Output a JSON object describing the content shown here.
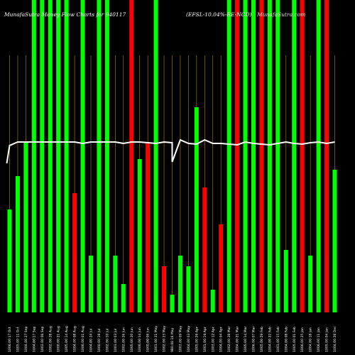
{
  "title_left": "MunafaSutra Money Flow Charts for 940117",
  "title_right": "(EFSL-10.04%-RE-NCD)",
  "watermark": "MunafaSutra.com",
  "colors": {
    "background": "#000000",
    "up": "#00ff00",
    "down": "#ff0000",
    "line": "#ffffff",
    "grid": "#b8860b"
  },
  "chart_data": {
    "type": "bar",
    "title": "MunafaSutra Money Flow Charts for 940117",
    "subtitle": "(EFSL-10.04%-RE-NCD)",
    "ylim": [
      0,
      440
    ],
    "grid": "vertical",
    "categories": [
      "1006.00 17 Oct",
      "1005.00 11 Oct",
      "1004.00 27 Sep",
      "1004.00 17 Sep",
      "1003.00 06 Sep",
      "1002.00 28 Aug",
      "1000.00 21 Aug",
      "1005.00 14 Aug",
      "1004.00 08 Aug",
      "1006.00 01 Aug",
      "1004.00 24 Jul",
      "1000.00 18 Jul",
      "1002.00 10 Jul",
      "1003.00 03 Jul",
      "1002.00 26 Jun",
      "1005.00 20 Jun",
      "1006.00 14 Jun",
      "1000.00 06 Jun",
      "1001.00 31 May",
      "1002.00 23 May",
      "980.00 16 May",
      "1003.00 09 May",
      "1004.00 03 May",
      "1005.00 26 Apr",
      "1001.00 19 Apr",
      "1003.00 12 Apr",
      "1004.00 04 Apr",
      "1002.00 28 Mar",
      "1004.00 21 Mar",
      "1005.00 14 Mar",
      "1006.00 07 Mar",
      "1005.00 29 Feb",
      "1004.00 22 Feb",
      "1003.00 15 Feb",
      "1004.00 08 Feb",
      "1005.00 01 Feb",
      "1006.00 25 Jan",
      "1004.00 18 Jan",
      "1006.00 11 Jan",
      "1005.00 04 Jan",
      "1004.00 28 Dec"
    ],
    "series": [
      {
        "values": [
          145,
          192,
          240,
          440,
          440,
          440,
          440,
          440,
          168,
          440,
          80,
          440,
          440,
          80,
          40,
          440,
          216,
          240,
          440,
          65,
          25,
          80,
          65,
          289,
          176,
          32,
          124,
          440,
          440,
          440,
          440,
          440,
          440,
          440,
          88,
          440,
          440,
          80,
          440,
          440,
          201
        ],
        "directions": [
          "up",
          "up",
          "up",
          "up",
          "up",
          "up",
          "up",
          "up",
          "down",
          "up",
          "up",
          "up",
          "up",
          "up",
          "up",
          "down",
          "up",
          "down",
          "up",
          "down",
          "up",
          "up",
          "up",
          "up",
          "down",
          "up",
          "down",
          "up",
          "down",
          "up",
          "up",
          "down",
          "up",
          "up",
          "up",
          "up",
          "down",
          "up",
          "up",
          "down",
          "up"
        ]
      }
    ],
    "line": [
      235,
      240,
      240,
      240,
      240,
      240,
      240,
      240,
      240,
      238,
      240,
      240,
      240,
      240,
      238,
      240,
      240,
      239,
      238,
      240,
      239,
      243,
      238,
      237,
      243,
      238,
      238,
      237,
      236,
      240,
      238,
      237,
      236,
      238,
      240,
      238,
      237,
      239,
      240,
      238,
      240
    ],
    "line_dip": 210
  }
}
